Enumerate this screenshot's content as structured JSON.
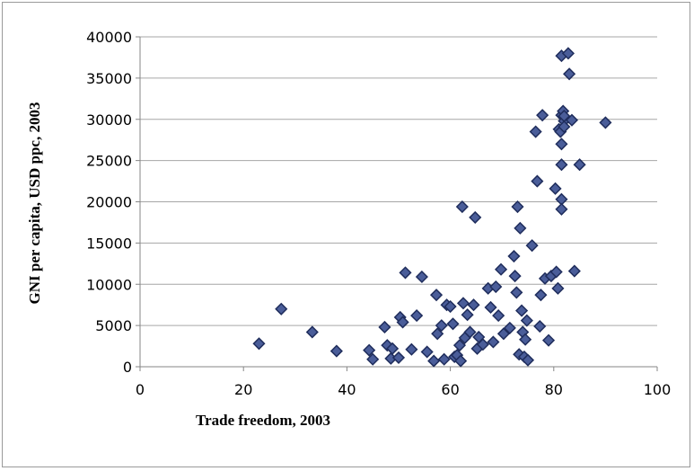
{
  "chart_data": {
    "type": "scatter",
    "title": "",
    "xlabel": "Trade freedom, 2003",
    "ylabel": "GNI per capita, USD ppc, 2003",
    "xlim": [
      0,
      100
    ],
    "ylim": [
      0,
      40000
    ],
    "xticks": [
      0,
      20,
      40,
      60,
      80,
      100
    ],
    "yticks": [
      0,
      5000,
      10000,
      15000,
      20000,
      25000,
      30000,
      35000,
      40000
    ],
    "grid": "horizontal",
    "legend": "none",
    "marker": "diamond",
    "marker_color": "#4a5d99",
    "marker_edge": "#1f2d5c",
    "points": [
      [
        23,
        2800
      ],
      [
        27.3,
        7000
      ],
      [
        33.3,
        4200
      ],
      [
        38,
        1900
      ],
      [
        44.3,
        2000
      ],
      [
        45,
        900
      ],
      [
        47.3,
        4800
      ],
      [
        47.8,
        2600
      ],
      [
        48.5,
        1000
      ],
      [
        48.8,
        2200
      ],
      [
        50,
        1100
      ],
      [
        50.3,
        6000
      ],
      [
        50.8,
        5400
      ],
      [
        51.3,
        11400
      ],
      [
        52.5,
        2100
      ],
      [
        53.5,
        6200
      ],
      [
        54.5,
        10900
      ],
      [
        55.5,
        1800
      ],
      [
        56.8,
        700
      ],
      [
        57.3,
        8700
      ],
      [
        57.5,
        4000
      ],
      [
        58.3,
        5000
      ],
      [
        58.8,
        900
      ],
      [
        59.3,
        7500
      ],
      [
        60,
        7300
      ],
      [
        60.5,
        5200
      ],
      [
        60.8,
        1200
      ],
      [
        61.3,
        1400
      ],
      [
        61.8,
        2600
      ],
      [
        62,
        700
      ],
      [
        62.3,
        19400
      ],
      [
        62.5,
        7700
      ],
      [
        62.8,
        3500
      ],
      [
        63.3,
        6300
      ],
      [
        63.8,
        4200
      ],
      [
        64.5,
        7500
      ],
      [
        64.8,
        18100
      ],
      [
        65.2,
        2200
      ],
      [
        65.5,
        3600
      ],
      [
        66.3,
        2700
      ],
      [
        67.3,
        9500
      ],
      [
        67.8,
        7200
      ],
      [
        68.3,
        3000
      ],
      [
        68.8,
        9700
      ],
      [
        69.3,
        6200
      ],
      [
        69.8,
        11800
      ],
      [
        70.3,
        4000
      ],
      [
        71.5,
        4700
      ],
      [
        72.3,
        13400
      ],
      [
        72.5,
        11000
      ],
      [
        72.8,
        9000
      ],
      [
        73,
        19400
      ],
      [
        73.3,
        1500
      ],
      [
        73.5,
        16800
      ],
      [
        73.8,
        6800
      ],
      [
        74,
        4200
      ],
      [
        74.3,
        1200
      ],
      [
        74.5,
        3300
      ],
      [
        74.8,
        5600
      ],
      [
        75,
        800
      ],
      [
        75.8,
        14700
      ],
      [
        76.5,
        28500
      ],
      [
        76.8,
        22500
      ],
      [
        77.3,
        4900
      ],
      [
        77.5,
        8700
      ],
      [
        77.8,
        30500
      ],
      [
        78.3,
        10700
      ],
      [
        79,
        3200
      ],
      [
        79.5,
        11000
      ],
      [
        80.3,
        21600
      ],
      [
        80.5,
        11500
      ],
      [
        80.8,
        9500
      ],
      [
        81,
        28800
      ],
      [
        81.3,
        28500
      ],
      [
        81.5,
        30500
      ],
      [
        81.5,
        37700
      ],
      [
        81.5,
        27000
      ],
      [
        81.5,
        24500
      ],
      [
        81.5,
        20300
      ],
      [
        81.5,
        19100
      ],
      [
        81.8,
        31000
      ],
      [
        82,
        29800
      ],
      [
        82,
        30400
      ],
      [
        82,
        29100
      ],
      [
        82.8,
        38000
      ],
      [
        83,
        35500
      ],
      [
        83.5,
        29900
      ],
      [
        84,
        11600
      ],
      [
        85,
        24500
      ],
      [
        90,
        29600
      ]
    ]
  }
}
